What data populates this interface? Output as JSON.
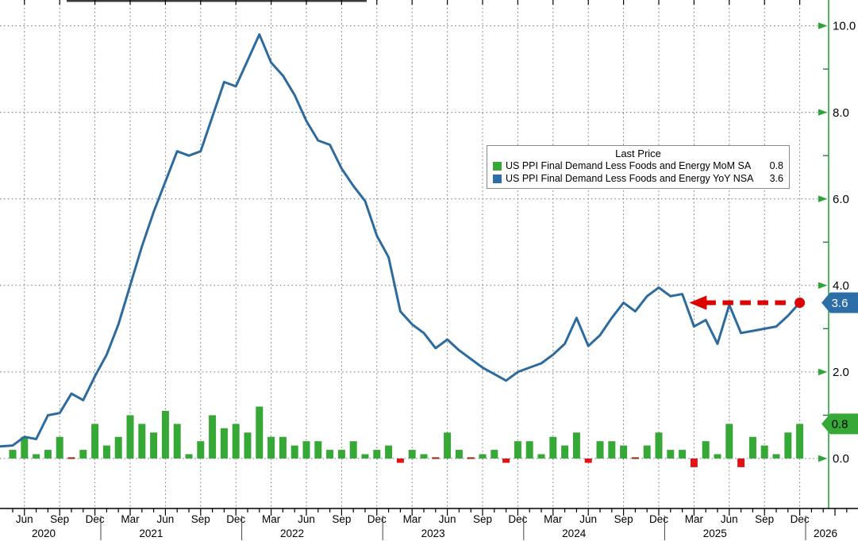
{
  "chart_data": {
    "type": "combo",
    "months": [
      "2020-05",
      "2020-06",
      "2020-07",
      "2020-08",
      "2020-09",
      "2020-10",
      "2020-11",
      "2020-12",
      "2021-01",
      "2021-02",
      "2021-03",
      "2021-04",
      "2021-05",
      "2021-06",
      "2021-07",
      "2021-08",
      "2021-09",
      "2021-10",
      "2021-11",
      "2021-12",
      "2022-01",
      "2022-02",
      "2022-03",
      "2022-04",
      "2022-05",
      "2022-06",
      "2022-07",
      "2022-08",
      "2022-09",
      "2022-10",
      "2022-11",
      "2022-12",
      "2023-01",
      "2023-02",
      "2023-03",
      "2023-04",
      "2023-05",
      "2023-06",
      "2023-07",
      "2023-08",
      "2023-09",
      "2023-10",
      "2023-11",
      "2023-12",
      "2024-01",
      "2024-02",
      "2024-03",
      "2024-04",
      "2024-05",
      "2024-06",
      "2024-07",
      "2024-08",
      "2024-09",
      "2024-10",
      "2024-11",
      "2024-12",
      "2025-01",
      "2025-02",
      "2025-03",
      "2025-04",
      "2025-05",
      "2025-06",
      "2025-07",
      "2025-08",
      "2025-09",
      "2025-10",
      "2025-11",
      "2025-12"
    ],
    "series": [
      {
        "name": "US PPI Final Demand Less Foods and Energy MoM SA",
        "type": "bar",
        "last_price": 0.8,
        "values": [
          0.2,
          0.5,
          0.1,
          0.2,
          0.5,
          0.0,
          0.2,
          0.8,
          0.3,
          0.5,
          1.0,
          0.8,
          0.6,
          1.1,
          0.8,
          0.1,
          0.4,
          1.0,
          0.7,
          0.8,
          0.6,
          1.2,
          0.5,
          0.5,
          0.3,
          0.4,
          0.4,
          0.2,
          0.2,
          0.4,
          0.1,
          0.2,
          0.3,
          -0.1,
          0.2,
          0.1,
          0.0,
          0.6,
          0.2,
          0.0,
          0.1,
          0.2,
          -0.1,
          0.4,
          0.4,
          0.1,
          0.5,
          0.3,
          0.6,
          -0.1,
          0.4,
          0.4,
          0.3,
          0.0,
          0.3,
          0.6,
          0.2,
          0.2,
          -0.2,
          0.4,
          0.1,
          0.8,
          -0.2,
          0.5,
          0.3,
          0.1,
          0.6,
          0.8
        ]
      },
      {
        "name": "US PPI Final Demand Less Foods and Energy YoY NSA",
        "type": "line",
        "last_price": 3.6,
        "values": [
          0.3,
          0.5,
          0.45,
          1.0,
          1.05,
          1.5,
          1.35,
          1.9,
          2.4,
          3.1,
          4.0,
          4.9,
          5.7,
          6.4,
          7.1,
          7.0,
          7.1,
          7.9,
          8.7,
          8.6,
          9.2,
          9.8,
          9.15,
          8.85,
          8.4,
          7.8,
          7.35,
          7.25,
          6.7,
          6.3,
          5.95,
          5.15,
          4.65,
          3.4,
          3.1,
          2.9,
          2.55,
          2.75,
          2.5,
          2.3,
          2.1,
          1.95,
          1.8,
          2.0,
          2.1,
          2.2,
          2.4,
          2.65,
          3.25,
          2.6,
          2.85,
          3.25,
          3.6,
          3.4,
          3.75,
          3.95,
          3.75,
          3.8,
          3.05,
          3.2,
          2.65,
          3.55,
          2.9,
          2.95,
          3.0,
          3.05,
          3.3,
          3.6
        ]
      }
    ],
    "legend": {
      "title": "Last Price",
      "entries": [
        {
          "label": "US PPI Final Demand Less Foods and Energy MoM SA",
          "value_text": "0.8",
          "color": "#35a835"
        },
        {
          "label": "US PPI Final Demand Less Foods and Energy YoY NSA",
          "value_text": "3.6",
          "color": "#2d6ea8"
        }
      ]
    },
    "y_axis": {
      "side": "right",
      "tick_labels": [
        "10.0",
        "8.0",
        "6.0",
        "4.0",
        "2.0",
        "0.0"
      ],
      "tick_values": [
        10,
        8,
        6,
        4,
        2,
        0
      ],
      "minor_tick_values": [
        9,
        7,
        5,
        3,
        1
      ],
      "ylim": [
        -1.2,
        10.6
      ],
      "grid": true
    },
    "x_axis": {
      "tick_labels": [
        "Jun",
        "Sep",
        "Dec",
        "Mar",
        "Jun",
        "Sep",
        "Dec",
        "Mar",
        "Jun",
        "Sep",
        "Dec",
        "Mar",
        "Jun",
        "Sep",
        "Dec",
        "Mar",
        "Jun",
        "Sep",
        "Dec",
        "Mar",
        "Jun",
        "Sep",
        "Dec"
      ],
      "year_labels": [
        "2020",
        "2021",
        "2022",
        "2023",
        "2024",
        "2025",
        "2026"
      ],
      "grid": "quarterly"
    },
    "price_badges": [
      {
        "value_text": "3.6",
        "value": 3.6,
        "color": "#2d6ea8",
        "text_color": "#ffffff",
        "series": "YoY NSA"
      },
      {
        "value_text": "0.8",
        "value": 0.8,
        "color": "#35a835",
        "text_color": "#000000",
        "series": "MoM SA"
      }
    ],
    "annotation": {
      "type": "dashed-arrow",
      "color": "#dc0000",
      "value": 3.6,
      "from_month": "2025-03",
      "to_month": "2025-12",
      "description": "horizontal dashed red arrow from current 3.6 level back to early-2025 level, red dot on last point"
    },
    "colors": {
      "bar_green": "#35a835",
      "bar_negative_red": "#e01414",
      "zero_bar_dash": "#993322",
      "line_blue": "#2d6b9e",
      "annotation_red": "#dc0000",
      "axis_green": "#2ba539",
      "grid_gray": "#6f6f6f",
      "axis_text": "#000000",
      "background": "#ffffff"
    }
  }
}
